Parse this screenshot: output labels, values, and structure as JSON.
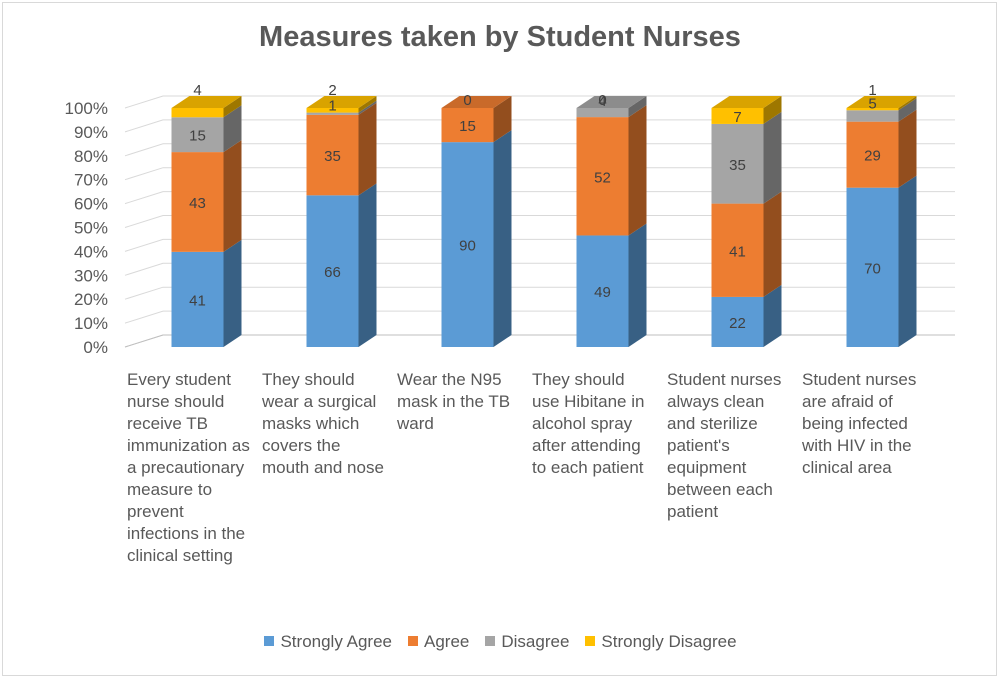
{
  "chart_data": {
    "type": "bar",
    "stacked": "percent",
    "three_d": true,
    "title": "Measures taken by Student Nurses",
    "categories": [
      "Every student nurse should receive TB immunization as a precautionary measure to prevent infections in the clinical setting",
      "They should wear a surgical masks which covers the mouth and nose",
      "Wear the N95 mask in the TB ward",
      "They should use Hibitane in alcohol spray after attending to each patient",
      "Student nurses always clean and sterilize patient's equipment between each patient",
      "Student nurses are afraid of being infected with HIV in the clinical area"
    ],
    "series": [
      {
        "name": "Strongly Agree",
        "color": "#5b9bd5",
        "values": [
          41,
          66,
          90,
          49,
          22,
          70
        ]
      },
      {
        "name": "Agree",
        "color": "#ed7d31",
        "values": [
          43,
          35,
          15,
          52,
          41,
          29
        ]
      },
      {
        "name": "Disagree",
        "color": "#a5a5a5",
        "values": [
          15,
          1,
          0,
          4,
          35,
          5
        ]
      },
      {
        "name": "Strongly Disagree",
        "color": "#ffc000",
        "values": [
          4,
          2,
          0,
          0,
          7,
          1
        ]
      }
    ],
    "y_ticks": [
      "0%",
      "10%",
      "20%",
      "30%",
      "40%",
      "50%",
      "60%",
      "70%",
      "80%",
      "90%",
      "100%"
    ],
    "ylim": [
      0,
      100
    ],
    "grid": true,
    "legend_position": "bottom"
  }
}
